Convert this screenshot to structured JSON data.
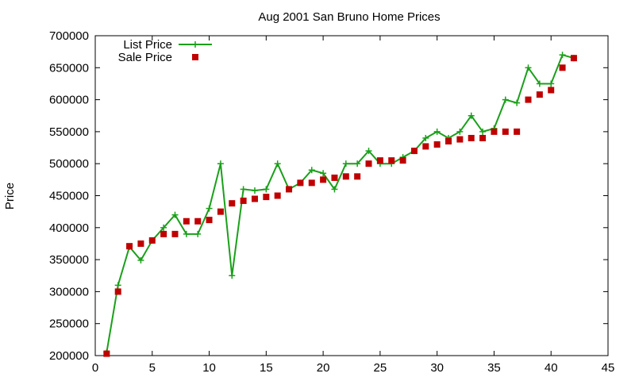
{
  "chart_data": {
    "type": "line",
    "title": "Aug 2001 San Bruno Home Prices",
    "xlabel": "",
    "ylabel": "Price",
    "xlim": [
      0,
      45
    ],
    "ylim": [
      200000,
      700000
    ],
    "x_ticks": [
      0,
      5,
      10,
      15,
      20,
      25,
      30,
      35,
      40,
      45
    ],
    "y_ticks": [
      200000,
      250000,
      300000,
      350000,
      400000,
      450000,
      500000,
      550000,
      600000,
      650000,
      700000
    ],
    "grid": false,
    "legend_position": "top-left",
    "series": [
      {
        "name": "List Price",
        "style": "line-points",
        "marker": "plus",
        "color": "#1aa01a",
        "points": [
          [
            1,
            205000
          ],
          [
            2,
            310000
          ],
          [
            3,
            370000
          ],
          [
            4,
            349000
          ],
          [
            5,
            380000
          ],
          [
            6,
            400000
          ],
          [
            7,
            420000
          ],
          [
            8,
            390000
          ],
          [
            9,
            390000
          ],
          [
            10,
            430000
          ],
          [
            11,
            500000
          ],
          [
            12,
            325000
          ],
          [
            13,
            460000
          ],
          [
            14,
            458000
          ],
          [
            15,
            460000
          ],
          [
            16,
            500000
          ],
          [
            17,
            460000
          ],
          [
            18,
            470000
          ],
          [
            19,
            490000
          ],
          [
            20,
            485000
          ],
          [
            21,
            460000
          ],
          [
            22,
            500000
          ],
          [
            23,
            500000
          ],
          [
            24,
            520000
          ],
          [
            25,
            500000
          ],
          [
            26,
            500000
          ],
          [
            27,
            510000
          ],
          [
            28,
            520000
          ],
          [
            29,
            540000
          ],
          [
            30,
            550000
          ],
          [
            31,
            540000
          ],
          [
            32,
            550000
          ],
          [
            33,
            575000
          ],
          [
            34,
            550000
          ],
          [
            35,
            555000
          ],
          [
            36,
            600000
          ],
          [
            37,
            595000
          ],
          [
            38,
            650000
          ],
          [
            39,
            625000
          ],
          [
            40,
            625000
          ],
          [
            41,
            670000
          ],
          [
            42,
            665000
          ]
        ]
      },
      {
        "name": "Sale Price",
        "style": "points",
        "marker": "square",
        "color": "#c00000",
        "points": [
          [
            1,
            203000
          ],
          [
            2,
            300000
          ],
          [
            3,
            371000
          ],
          [
            4,
            375000
          ],
          [
            5,
            380000
          ],
          [
            6,
            390000
          ],
          [
            7,
            390000
          ],
          [
            8,
            410000
          ],
          [
            9,
            410000
          ],
          [
            10,
            412000
          ],
          [
            11,
            425000
          ],
          [
            12,
            438000
          ],
          [
            13,
            442000
          ],
          [
            14,
            445000
          ],
          [
            15,
            448000
          ],
          [
            16,
            450000
          ],
          [
            17,
            460000
          ],
          [
            18,
            470000
          ],
          [
            19,
            470000
          ],
          [
            20,
            475000
          ],
          [
            21,
            478000
          ],
          [
            22,
            480000
          ],
          [
            23,
            480000
          ],
          [
            24,
            500000
          ],
          [
            25,
            505000
          ],
          [
            26,
            505000
          ],
          [
            27,
            505000
          ],
          [
            28,
            520000
          ],
          [
            29,
            527000
          ],
          [
            30,
            530000
          ],
          [
            31,
            535000
          ],
          [
            32,
            538000
          ],
          [
            33,
            540000
          ],
          [
            34,
            540000
          ],
          [
            35,
            550000
          ],
          [
            36,
            550000
          ],
          [
            37,
            550000
          ],
          [
            38,
            600000
          ],
          [
            39,
            608000
          ],
          [
            40,
            615000
          ],
          [
            41,
            650000
          ],
          [
            42,
            665000
          ]
        ]
      }
    ]
  }
}
